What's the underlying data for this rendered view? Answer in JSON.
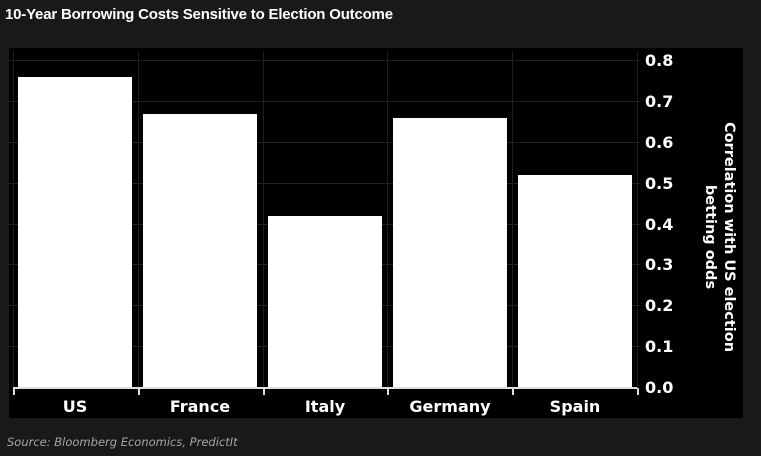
{
  "header": {
    "title": "10-Year Borrowing Costs Sensitive to Election Outcome"
  },
  "chart_data": {
    "type": "bar",
    "title": "10-Year Borrowing Costs Sensitive to Election Outcome",
    "categories": [
      "US",
      "France",
      "Italy",
      "Germany",
      "Spain"
    ],
    "values": [
      0.76,
      0.67,
      0.42,
      0.66,
      0.52
    ],
    "xlabel": "",
    "ylabel": "Correlation with US election betting odds",
    "ylabel_lines": [
      "Correlation with US election",
      "betting odds"
    ],
    "ylim": [
      0.0,
      0.8
    ],
    "ytick_interval": 0.1,
    "ytick_labels": [
      "0.0",
      "0.1",
      "0.2",
      "0.3",
      "0.4",
      "0.5",
      "0.6",
      "0.7",
      "0.8"
    ],
    "yaxis_side": "right",
    "grid": "on",
    "legend": "none",
    "bar_color": "#ffffff",
    "plot_background": "#000000",
    "outer_background": "#191919",
    "axis_color": "#dedede",
    "gridline_color": "#222222",
    "label_color": "#ffffff"
  },
  "source": {
    "text": "Source: Bloomberg Economics, PredictIt"
  }
}
